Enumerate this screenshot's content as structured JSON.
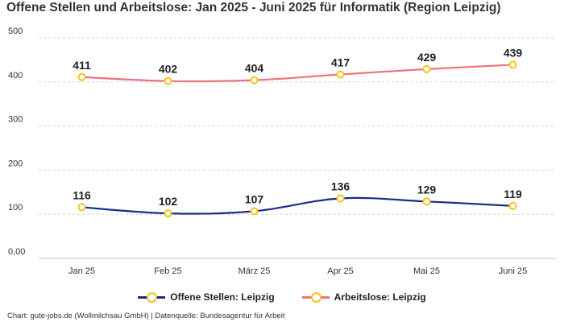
{
  "chart_data": {
    "type": "line",
    "title": "Offene Stellen und Arbeitslose: Jan 2025 - Juni 2025 für Informatik (Region Leipzig)",
    "categories": [
      "Jan 25",
      "Feb 25",
      "März 25",
      "Apr 25",
      "Mai 25",
      "Juni 25"
    ],
    "series": [
      {
        "name": "Offene Stellen: Leipzig",
        "color": "#1a2a8a",
        "values": [
          116,
          102,
          107,
          136,
          129,
          119
        ]
      },
      {
        "name": "Arbeitslose: Leipzig",
        "color": "#f07080",
        "values": [
          411,
          402,
          404,
          417,
          429,
          439
        ]
      }
    ],
    "marker_color": "#f5c518",
    "y_ticks": [
      {
        "value": 0,
        "label": "0,00"
      },
      {
        "value": 100,
        "label": "100"
      },
      {
        "value": 200,
        "label": "200"
      },
      {
        "value": 300,
        "label": "300"
      },
      {
        "value": 400,
        "label": "400"
      },
      {
        "value": 500,
        "label": "500"
      }
    ],
    "ylim": [
      0,
      500
    ],
    "grid": true,
    "xlabel": "",
    "ylabel": "",
    "legend": "bottom-center"
  },
  "footer": "Chart: gute-jobs.de (Wollmilchsau GmbH) | Datenquelle: Bundesagentur für Arbeit"
}
